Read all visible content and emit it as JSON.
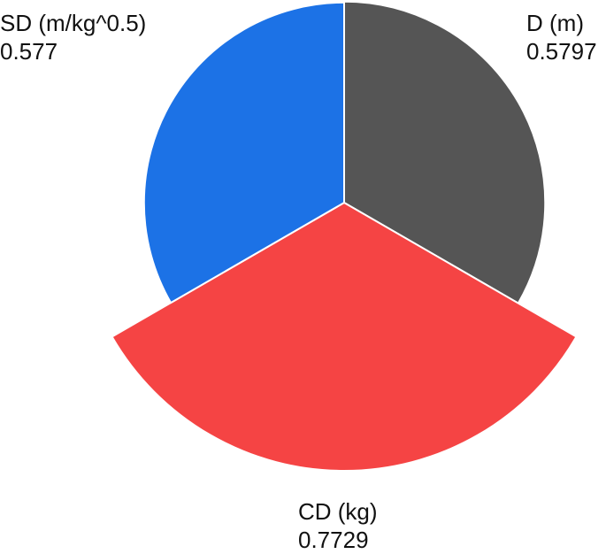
{
  "chart_data": {
    "type": "pie",
    "subtype": "polar-area",
    "slices": [
      {
        "label": "D (m)",
        "value": 0.5797,
        "value_text": "0.5797",
        "color": "#555555"
      },
      {
        "label": "CD (kg)",
        "value": 0.7729,
        "value_text": "0.7729",
        "color": "#f54444"
      },
      {
        "label": "SD (m/kg^0.5)",
        "value": 0.577,
        "value_text": "0.577",
        "color": "#1c72e6"
      }
    ],
    "title": "",
    "legend": "none"
  }
}
